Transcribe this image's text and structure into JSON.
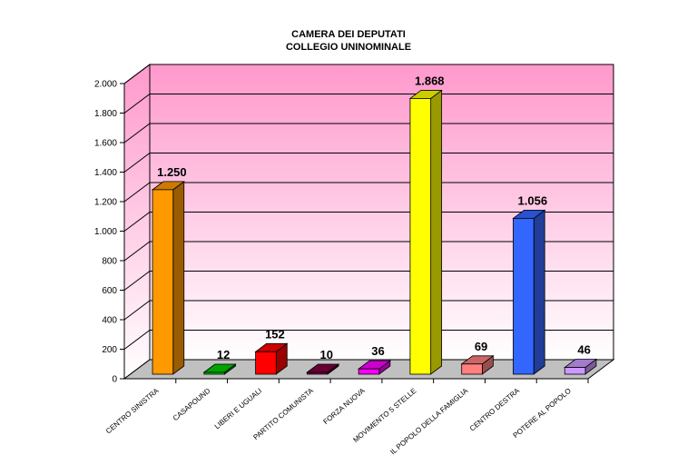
{
  "chart_data": {
    "type": "bar",
    "title_lines": [
      "CAMERA DEI DEPUTATI",
      "COLLEGIO UNINOMINALE"
    ],
    "categories": [
      "CENTRO SINISTRA",
      "CASAPOUND",
      "LIBERI E UGUALI",
      "PARTITO COMUNISTA",
      "FORZA NUOVA",
      "MOVIMENTO 5 STELLE",
      "IL POPOLO DELLA FAMIGLIA",
      "CENTRO DESTRA",
      "POTERE AL POPOLO"
    ],
    "values": [
      1250,
      12,
      152,
      10,
      36,
      1868,
      69,
      1056,
      46
    ],
    "value_labels": [
      "1.250",
      "12",
      "152",
      "10",
      "36",
      "1.868",
      "69",
      "1.056",
      "46"
    ],
    "bar_colors": [
      "#ff9900",
      "#00cc00",
      "#ff0000",
      "#800040",
      "#ff00ff",
      "#ffff00",
      "#ff8080",
      "#3366ff",
      "#cc99ff"
    ],
    "ylim": [
      0,
      2000
    ],
    "yticks": [
      0,
      200,
      400,
      600,
      800,
      1000,
      1200,
      1400,
      1600,
      1800,
      2000
    ],
    "ytick_labels": [
      "0",
      "200",
      "400",
      "600",
      "800",
      "1.000",
      "1.200",
      "1.400",
      "1.600",
      "1.800",
      "2.000"
    ],
    "grid": true,
    "style": "3d",
    "background_gradient": [
      "#ff99cc",
      "#ffffff"
    ]
  }
}
